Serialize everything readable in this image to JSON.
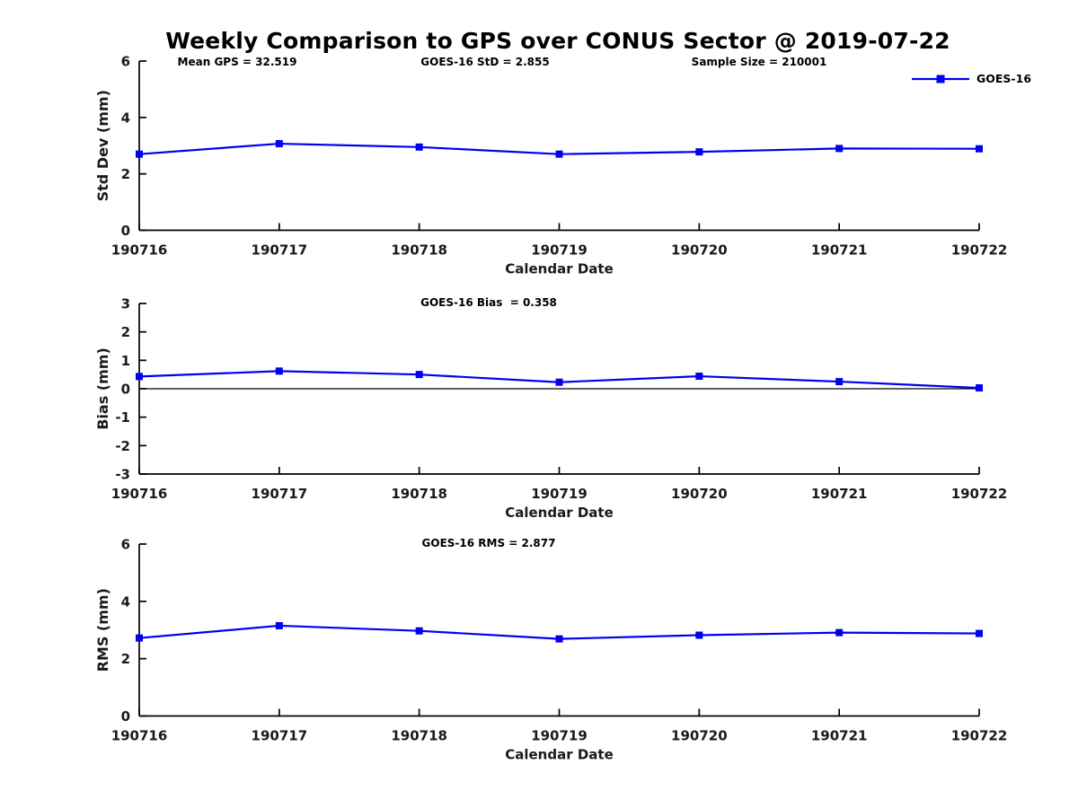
{
  "title": "Weekly Comparison to GPS over CONUS Sector @ 2019-07-22",
  "chart_data": [
    {
      "id": "std-dev",
      "type": "line",
      "categories": [
        "190716",
        "190717",
        "190718",
        "190719",
        "190720",
        "190721",
        "190722"
      ],
      "series": [
        {
          "name": "GOES-16",
          "color": "#0000EE",
          "marker": "square",
          "values": [
            2.7,
            3.07,
            2.95,
            2.7,
            2.78,
            2.9,
            2.89
          ]
        }
      ],
      "xlabel": "Calendar Date",
      "ylabel": "Std Dev (mm)",
      "ylim": [
        0,
        6
      ],
      "yticks": [
        0,
        2,
        4,
        6
      ],
      "zero_line": false,
      "grid": false,
      "legend_position": "top-right",
      "annotations": {
        "left": "Mean GPS = 32.519",
        "center": "GOES-16 StD = 2.855",
        "right": "Sample Size = 210001"
      }
    },
    {
      "id": "bias",
      "type": "line",
      "categories": [
        "190716",
        "190717",
        "190718",
        "190719",
        "190720",
        "190721",
        "190722"
      ],
      "series": [
        {
          "name": "GOES-16",
          "color": "#0000EE",
          "marker": "square",
          "values": [
            0.43,
            0.62,
            0.5,
            0.23,
            0.44,
            0.25,
            0.03
          ]
        }
      ],
      "xlabel": "Calendar Date",
      "ylabel": "Bias (mm)",
      "ylim": [
        -3,
        3
      ],
      "yticks": [
        3,
        2,
        1,
        0,
        -1,
        -2,
        -3
      ],
      "zero_line": true,
      "grid": false,
      "annotations": {
        "center": "GOES-16 Bias  = 0.358"
      }
    },
    {
      "id": "rms",
      "type": "line",
      "categories": [
        "190716",
        "190717",
        "190718",
        "190719",
        "190720",
        "190721",
        "190722"
      ],
      "series": [
        {
          "name": "GOES-16",
          "color": "#0000EE",
          "marker": "square",
          "values": [
            2.72,
            3.15,
            2.97,
            2.69,
            2.82,
            2.91,
            2.88
          ]
        }
      ],
      "xlabel": "Calendar Date",
      "ylabel": "RMS (mm)",
      "ylim": [
        0,
        6
      ],
      "yticks": [
        0,
        2,
        4,
        6
      ],
      "zero_line": false,
      "grid": false,
      "annotations": {
        "center": "GOES-16 RMS = 2.877"
      }
    }
  ]
}
